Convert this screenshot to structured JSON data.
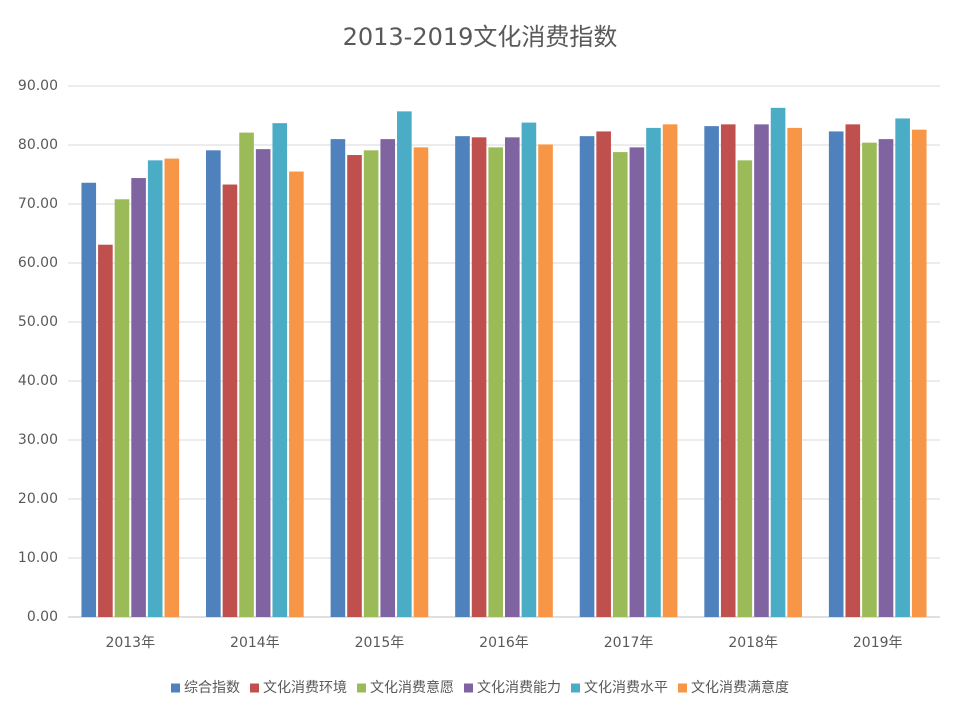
{
  "chart_data": {
    "type": "bar",
    "title": "2013-2019文化消费指数",
    "categories": [
      "2013年",
      "2014年",
      "2015年",
      "2016年",
      "2017年",
      "2018年",
      "2019年"
    ],
    "series": [
      {
        "name": "综合指数",
        "color": "#4f81bd",
        "values": [
          73.6,
          79.1,
          81.0,
          81.5,
          81.5,
          83.2,
          82.3
        ]
      },
      {
        "name": "文化消费环境",
        "color": "#c0504d",
        "values": [
          63.1,
          73.3,
          78.3,
          81.3,
          82.3,
          83.5,
          83.5
        ]
      },
      {
        "name": "文化消费意愿",
        "color": "#9bbb59",
        "values": [
          70.8,
          82.1,
          79.1,
          79.6,
          78.8,
          77.4,
          80.4
        ]
      },
      {
        "name": "文化消费能力",
        "color": "#8064a2",
        "values": [
          74.4,
          79.3,
          81.0,
          81.3,
          79.6,
          83.5,
          81.0
        ]
      },
      {
        "name": "文化消费水平",
        "color": "#4bacc6",
        "values": [
          77.4,
          83.7,
          85.7,
          83.8,
          82.9,
          86.3,
          84.5
        ]
      },
      {
        "name": "文化消费满意度",
        "color": "#f79646",
        "values": [
          77.7,
          75.5,
          79.6,
          80.1,
          83.5,
          82.9,
          82.6
        ]
      }
    ],
    "ylim": [
      0,
      90
    ],
    "yticks": [
      {
        "value": 0,
        "label": "0.00"
      },
      {
        "value": 10,
        "label": "10.00"
      },
      {
        "value": 20,
        "label": "20.00"
      },
      {
        "value": 30,
        "label": "30.00"
      },
      {
        "value": 40,
        "label": "40.00"
      },
      {
        "value": 50,
        "label": "50.00"
      },
      {
        "value": 60,
        "label": "60.00"
      },
      {
        "value": 70,
        "label": "70.00"
      },
      {
        "value": 80,
        "label": "80.00"
      },
      {
        "value": 90,
        "label": "90.00"
      }
    ],
    "grid": true,
    "legend": "bottom"
  }
}
